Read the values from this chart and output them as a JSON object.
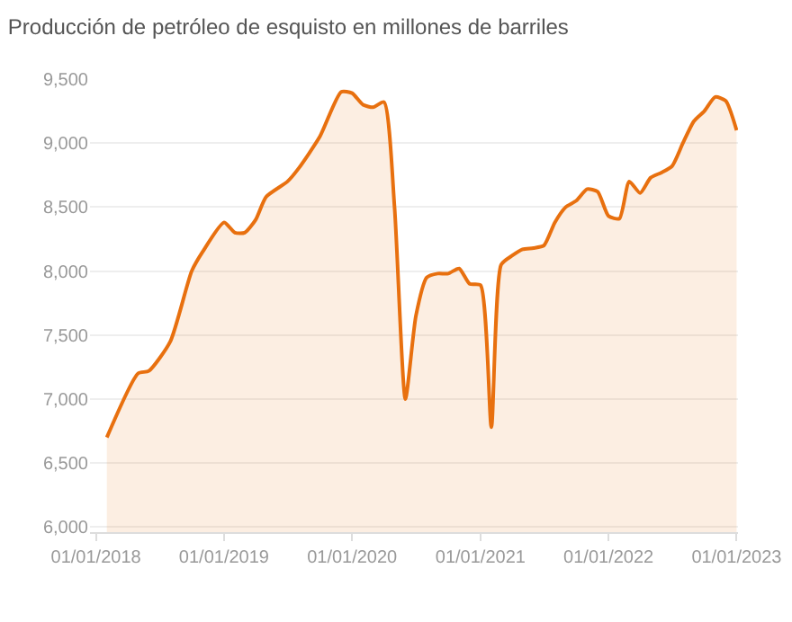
{
  "chart_data": {
    "type": "area",
    "title": "Producción de petróleo de esquisto en millones de barriles",
    "x": [
      "2018-02-01",
      "2018-05-01",
      "2018-06-01",
      "2018-08-01",
      "2018-10-01",
      "2018-11-01",
      "2019-01-01",
      "2019-02-01",
      "2019-03-01",
      "2019-04-01",
      "2019-05-01",
      "2019-07-01",
      "2019-08-01",
      "2019-10-01",
      "2019-12-01",
      "2020-01-01",
      "2020-02-01",
      "2020-03-01",
      "2020-04-01",
      "2020-05-01",
      "2020-06-01",
      "2020-07-01",
      "2020-08-01",
      "2020-09-01",
      "2020-10-01",
      "2020-11-01",
      "2020-12-01",
      "2021-01-01",
      "2021-02-01",
      "2021-03-01",
      "2021-04-01",
      "2021-05-01",
      "2021-06-01",
      "2021-07-01",
      "2021-08-01",
      "2021-09-01",
      "2021-10-01",
      "2021-11-01",
      "2021-12-01",
      "2022-01-01",
      "2022-02-01",
      "2022-03-01",
      "2022-04-01",
      "2022-05-01",
      "2022-06-01",
      "2022-07-01",
      "2022-08-01",
      "2022-09-01",
      "2022-10-01",
      "2022-11-01",
      "2022-12-01",
      "2023-01-01"
    ],
    "series": [
      {
        "color": "#e8700f",
        "values": [
          6700,
          7200,
          7220,
          7450,
          8000,
          8150,
          8380,
          8300,
          8300,
          8400,
          8580,
          8700,
          8800,
          9050,
          9400,
          9390,
          9300,
          9280,
          9320,
          8500,
          7000,
          7650,
          7950,
          7980,
          7980,
          8020,
          7900,
          7890,
          6780,
          8050,
          8120,
          8170,
          8180,
          8200,
          8380,
          8500,
          8550,
          8640,
          8620,
          8430,
          8410,
          8700,
          8610,
          8730,
          8770,
          8820,
          9000,
          9170,
          9250,
          9360,
          9330,
          9100
        ]
      }
    ],
    "xlim": [
      "2017-12-15",
      "2023-01-05"
    ],
    "xticks": [
      {
        "value": "2018-01-01",
        "label": "01/01/2018"
      },
      {
        "value": "2019-01-01",
        "label": "01/01/2019"
      },
      {
        "value": "2020-01-01",
        "label": "01/01/2020"
      },
      {
        "value": "2021-01-01",
        "label": "01/01/2021"
      },
      {
        "value": "2022-01-01",
        "label": "01/01/2022"
      },
      {
        "value": "2023-01-01",
        "label": "01/01/2023"
      }
    ],
    "ylim": [
      5960,
      9500
    ],
    "yticks": [
      {
        "value": 6000,
        "label": "6,000"
      },
      {
        "value": 6500,
        "label": "6,500"
      },
      {
        "value": 7000,
        "label": "7,000"
      },
      {
        "value": 7500,
        "label": "7,500"
      },
      {
        "value": 8000,
        "label": "8,000"
      },
      {
        "value": 8500,
        "label": "8,500"
      },
      {
        "value": 9000,
        "label": "9,000"
      },
      {
        "value": 9500,
        "label": "9,500"
      }
    ],
    "grid": "y"
  }
}
